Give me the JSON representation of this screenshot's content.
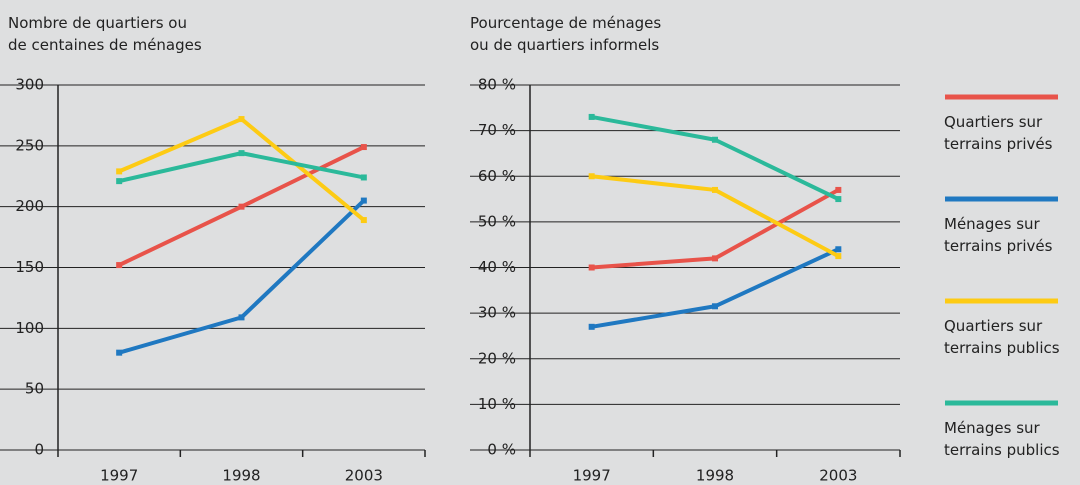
{
  "chart_data": [
    {
      "type": "line",
      "title": "Nombre de quartiers ou\nde centaines de ménages",
      "categories": [
        "1997",
        "1998",
        "2003"
      ],
      "series": [
        {
          "name": "Quartiers sur terrains privés",
          "color": "#e8534a",
          "values": [
            152,
            200,
            249
          ]
        },
        {
          "name": "Ménages sur terrains privés",
          "color": "#1f78c1",
          "values": [
            80,
            109,
            205
          ]
        },
        {
          "name": "Quartiers sur terrains publics",
          "color": "#fdcb14",
          "values": [
            229,
            272,
            189
          ]
        },
        {
          "name": "Ménages sur terrains publics",
          "color": "#2bb99a",
          "values": [
            221,
            244,
            224
          ]
        }
      ],
      "ylim": [
        0,
        300
      ],
      "yticks": [
        0,
        50,
        100,
        150,
        200,
        250,
        300
      ],
      "grid": true
    },
    {
      "type": "line",
      "title": "Pourcentage de ménages\nou de quartiers informels",
      "categories": [
        "1997",
        "1998",
        "2003"
      ],
      "series": [
        {
          "color": "#e8534a",
          "values": [
            40,
            42,
            57
          ]
        },
        {
          "color": "#1f78c1",
          "values": [
            27,
            31.5,
            44
          ]
        },
        {
          "color": "#fdcb14",
          "values": [
            60,
            57,
            42.5
          ]
        },
        {
          "color": "#2bb99a",
          "values": [
            73,
            68,
            55
          ]
        }
      ],
      "ylim": [
        0,
        80
      ],
      "yticks": [
        {
          "value": 0,
          "label": "0 %"
        },
        {
          "value": 10,
          "label": "10 %"
        },
        {
          "value": 20,
          "label": "20 %"
        },
        {
          "value": 30,
          "label": "30 %"
        },
        {
          "value": 40,
          "label": "40 %"
        },
        {
          "value": 50,
          "label": "50 %"
        },
        {
          "value": 60,
          "label": "60 %"
        },
        {
          "value": 70,
          "label": "70 %"
        },
        {
          "value": 80,
          "label": "80 %"
        }
      ],
      "grid": true
    }
  ]
}
